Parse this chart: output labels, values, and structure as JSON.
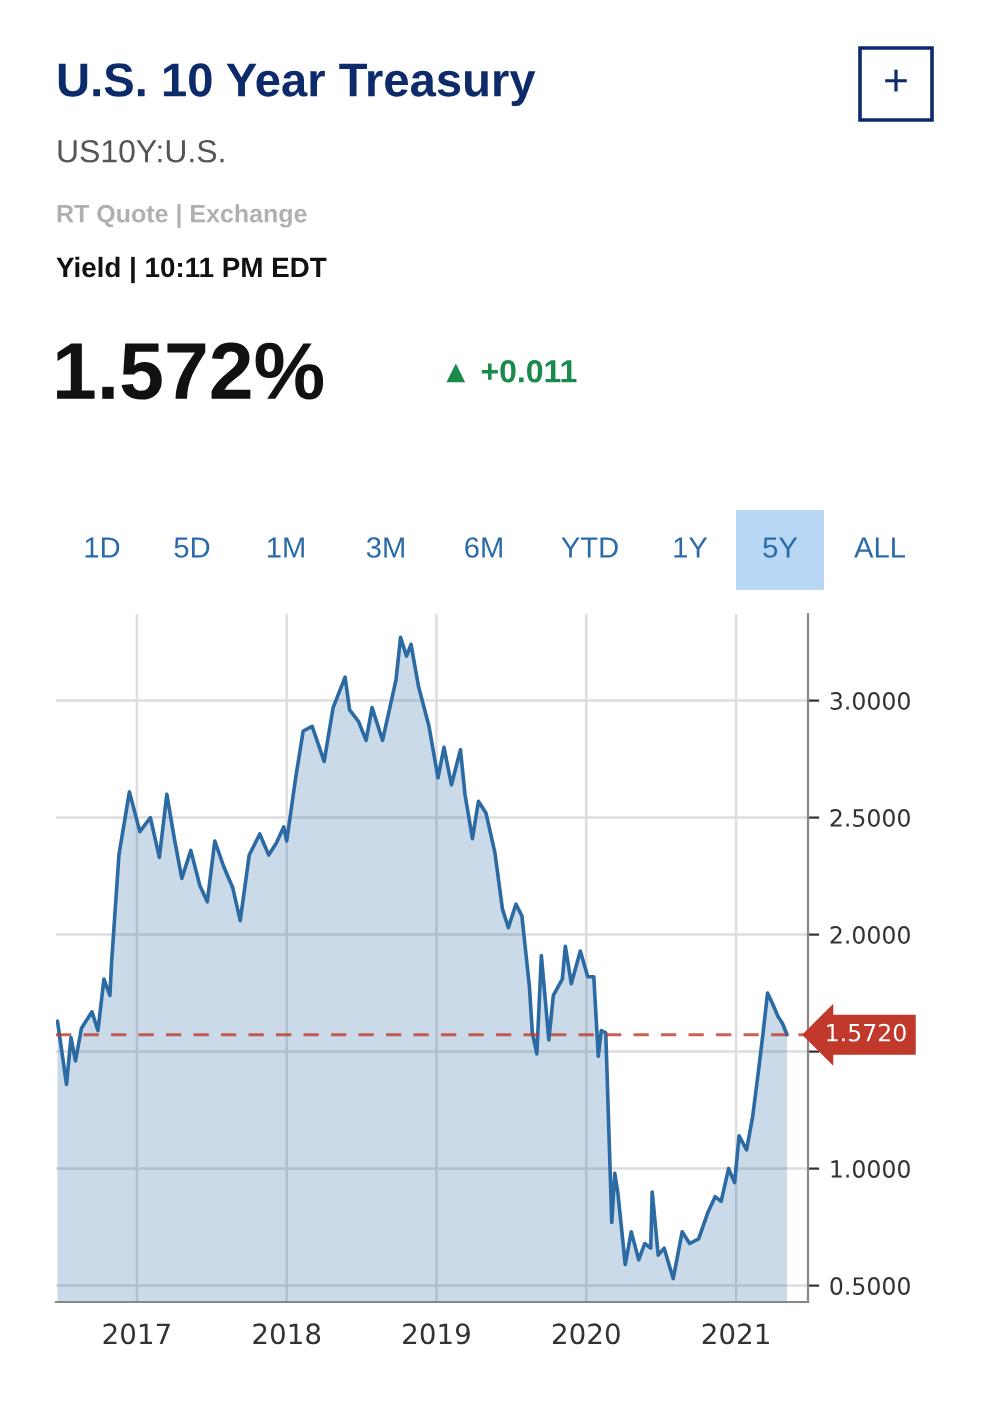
{
  "chart_data": {
    "type": "area",
    "title": "U.S. 10 Year Treasury",
    "subtitle": "US10Y:U.S.",
    "annotations": [
      "RT Quote | Exchange",
      "Yield | 10:11 PM EDT",
      "1.572%",
      "▲ +0.011",
      "+",
      "1D",
      "5D",
      "1M",
      "3M",
      "6M",
      "YTD",
      "1Y",
      "5Y",
      "ALL"
    ],
    "series": [
      {
        "color": "#2b6aa3",
        "x": [
          2016.47,
          2016.53,
          2016.56,
          2016.59,
          2016.63,
          2016.7,
          2016.74,
          2016.78,
          2016.82,
          2016.83,
          2016.88,
          2016.95,
          2017.02,
          2017.09,
          2017.15,
          2017.2,
          2017.25,
          2017.3,
          2017.36,
          2017.42,
          2017.47,
          2017.52,
          2017.58,
          2017.64,
          2017.69,
          2017.75,
          2017.82,
          2017.88,
          2017.93,
          2017.98,
          2018.0,
          2018.06,
          2018.11,
          2018.17,
          2018.25,
          2018.31,
          2018.39,
          2018.42,
          2018.48,
          2018.53,
          2018.57,
          2018.64,
          2018.73,
          2018.76,
          2018.8,
          2018.83,
          2018.88,
          2018.95,
          2019.01,
          2019.05,
          2019.1,
          2019.16,
          2019.19,
          2019.24,
          2019.28,
          2019.33,
          2019.39,
          2019.44,
          2019.48,
          2019.53,
          2019.57,
          2019.62,
          2019.64,
          2019.67,
          2019.7,
          2019.75,
          2019.78,
          2019.84,
          2019.86,
          2019.9,
          2019.96,
          2020.01,
          2020.05,
          2020.08,
          2020.1,
          2020.13,
          2020.17,
          2020.19,
          2020.21,
          2020.26,
          2020.3,
          2020.35,
          2020.39,
          2020.43,
          2020.44,
          2020.48,
          2020.52,
          2020.58,
          2020.64,
          2020.69,
          2020.75,
          2020.81,
          2020.86,
          2020.9,
          2020.95,
          2020.99,
          2021.02,
          2021.07,
          2021.11,
          2021.15,
          2021.18,
          2021.21,
          2021.24,
          2021.28,
          2021.31,
          2021.34
        ],
        "values": [
          1.63,
          1.36,
          1.56,
          1.46,
          1.6,
          1.67,
          1.59,
          1.81,
          1.74,
          1.87,
          2.34,
          2.61,
          2.44,
          2.5,
          2.33,
          2.6,
          2.41,
          2.24,
          2.36,
          2.21,
          2.14,
          2.4,
          2.29,
          2.2,
          2.06,
          2.34,
          2.43,
          2.34,
          2.39,
          2.46,
          2.4,
          2.67,
          2.87,
          2.89,
          2.74,
          2.97,
          3.1,
          2.96,
          2.91,
          2.83,
          2.97,
          2.83,
          3.09,
          3.27,
          3.19,
          3.24,
          3.06,
          2.89,
          2.67,
          2.8,
          2.64,
          2.79,
          2.6,
          2.41,
          2.57,
          2.52,
          2.35,
          2.11,
          2.03,
          2.13,
          2.08,
          1.78,
          1.58,
          1.49,
          1.91,
          1.55,
          1.74,
          1.81,
          1.95,
          1.79,
          1.93,
          1.82,
          1.82,
          1.48,
          1.59,
          1.58,
          0.77,
          0.98,
          0.9,
          0.59,
          0.73,
          0.61,
          0.68,
          0.66,
          0.9,
          0.63,
          0.66,
          0.53,
          0.73,
          0.68,
          0.7,
          0.81,
          0.88,
          0.86,
          1.0,
          0.94,
          1.14,
          1.08,
          1.22,
          1.42,
          1.58,
          1.75,
          1.71,
          1.65,
          1.62,
          1.572
        ]
      }
    ],
    "xlim": [
      2016.46,
      2021.48
    ],
    "xticks": [
      2017,
      2018,
      2019,
      2020,
      2021
    ],
    "ylim": [
      0.43,
      3.37
    ],
    "yticks": [
      {
        "value": 0.5,
        "label": "0.5000"
      },
      {
        "value": 1.0,
        "label": "1.0000"
      },
      {
        "value": 1.5,
        "label": null
      },
      {
        "value": 2.0,
        "label": "2.0000"
      },
      {
        "value": 2.5,
        "label": "2.5000"
      },
      {
        "value": 3.0,
        "label": "3.0000"
      }
    ],
    "ref_lines": [
      {
        "axis": "y",
        "value": 1.572,
        "label": "1.5720",
        "color": "#c0392b",
        "line_style": "dashed"
      }
    ],
    "grid": true
  }
}
